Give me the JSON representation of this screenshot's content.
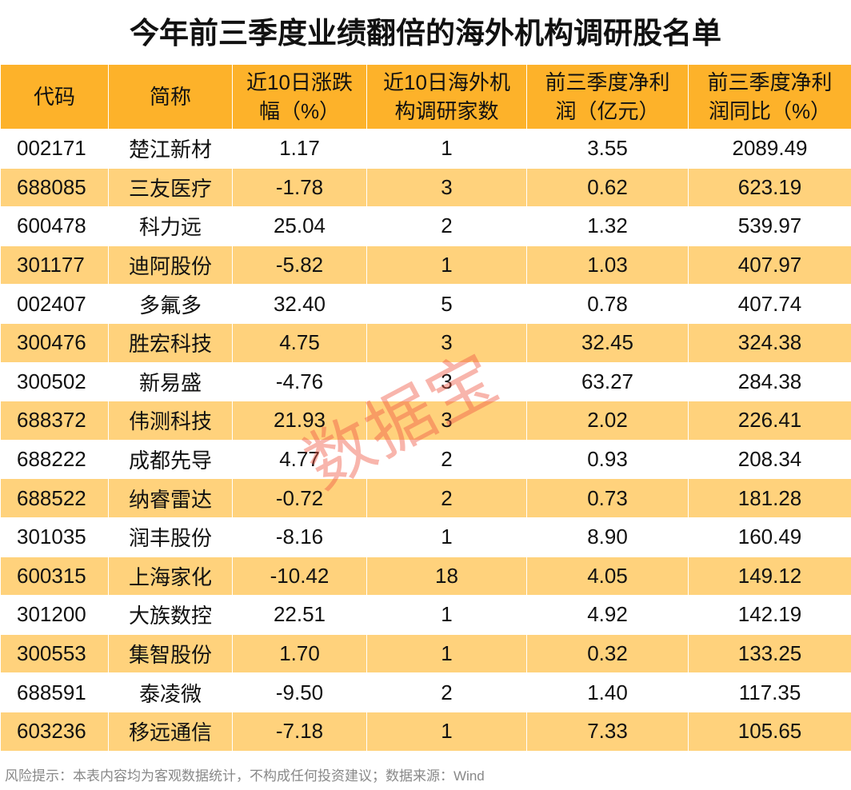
{
  "chart_data": {
    "type": "table",
    "title": "今年前三季度业绩翻倍的海外机构调研股名单",
    "columns": [
      "代码",
      "简称",
      "近10日涨跌幅（%）",
      "近10日海外机构调研家数",
      "前三季度净利润（亿元）",
      "前三季度净利润同比（%）"
    ],
    "rows": [
      [
        "002171",
        "楚江新材",
        "1.17",
        "1",
        "3.55",
        "2089.49"
      ],
      [
        "688085",
        "三友医疗",
        "-1.78",
        "3",
        "0.62",
        "623.19"
      ],
      [
        "600478",
        "科力远",
        "25.04",
        "2",
        "1.32",
        "539.97"
      ],
      [
        "301177",
        "迪阿股份",
        "-5.82",
        "1",
        "1.03",
        "407.97"
      ],
      [
        "002407",
        "多氟多",
        "32.40",
        "5",
        "0.78",
        "407.74"
      ],
      [
        "300476",
        "胜宏科技",
        "4.75",
        "3",
        "32.45",
        "324.38"
      ],
      [
        "300502",
        "新易盛",
        "-4.76",
        "3",
        "63.27",
        "284.38"
      ],
      [
        "688372",
        "伟测科技",
        "21.93",
        "3",
        "2.02",
        "226.41"
      ],
      [
        "688222",
        "成都先导",
        "4.77",
        "2",
        "0.93",
        "208.34"
      ],
      [
        "688522",
        "纳睿雷达",
        "-0.72",
        "2",
        "0.73",
        "181.28"
      ],
      [
        "301035",
        "润丰股份",
        "-8.16",
        "1",
        "8.90",
        "160.49"
      ],
      [
        "600315",
        "上海家化",
        "-10.42",
        "18",
        "4.05",
        "149.12"
      ],
      [
        "301200",
        "大族数控",
        "22.51",
        "1",
        "4.92",
        "142.19"
      ],
      [
        "300553",
        "集智股份",
        "1.70",
        "1",
        "0.32",
        "133.25"
      ],
      [
        "688591",
        "泰凌微",
        "-9.50",
        "2",
        "1.40",
        "117.35"
      ],
      [
        "603236",
        "移远通信",
        "-7.18",
        "1",
        "7.33",
        "105.65"
      ]
    ]
  },
  "headers_display": [
    [
      "代码"
    ],
    [
      "简称"
    ],
    [
      "近10日涨跌",
      "幅（%）"
    ],
    [
      "近10日海外机",
      "构调研家数"
    ],
    [
      "前三季度净利",
      "润（亿元）"
    ],
    [
      "前三季度净利",
      "润同比（%）"
    ]
  ],
  "footer": "风险提示：本表内容均为客观数据统计，不构成任何投资建议；数据来源：Wind",
  "watermark": "数据宝",
  "colors": {
    "header": "#FDB22A",
    "alt_row": "#FFD27C",
    "watermark": "#F05A46"
  }
}
